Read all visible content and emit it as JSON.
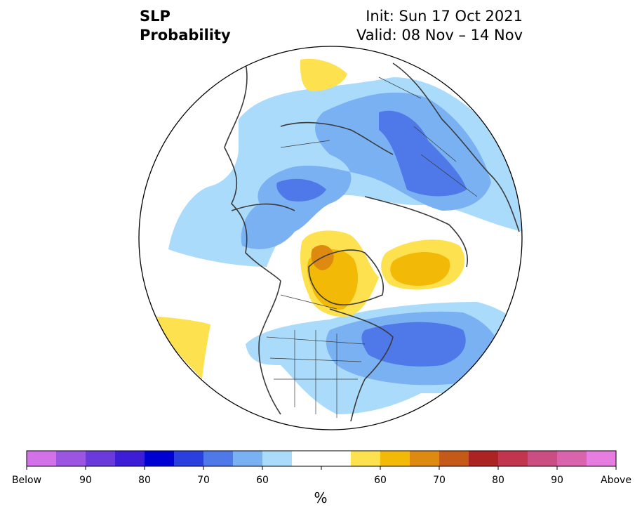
{
  "header": {
    "title_line1": "SLP",
    "title_line2": "Probability",
    "init": "Init: Sun 17 Oct 2021",
    "valid": "Valid: 08 Nov – 14 Nov"
  },
  "colorbar": {
    "unit": "%",
    "colors": [
      "#d372e8",
      "#9b55e0",
      "#6a3adb",
      "#3d1dd5",
      "#0000d2",
      "#2a3fde",
      "#4f78e8",
      "#79b1f2",
      "#abdbfb",
      "#ffffff",
      "#ffffff",
      "#fee14f",
      "#f2b907",
      "#de8a10",
      "#c55a18",
      "#ac2324",
      "#c1354f",
      "#cb4e83",
      "#d964ad",
      "#e77de0"
    ],
    "labels": [
      "Below",
      "90",
      "80",
      "70",
      "60",
      "60",
      "70",
      "80",
      "90",
      "Above"
    ]
  },
  "map": {
    "projection": "north-polar-stereographic",
    "palette": {
      "blue_light": "#abdbfb",
      "blue_mid": "#79b1f2",
      "blue_dark": "#4f78e8",
      "yellow_light": "#fee14f",
      "yellow_mid": "#f2b907",
      "orange": "#de8a10",
      "coast": "#3a3a3a"
    }
  }
}
